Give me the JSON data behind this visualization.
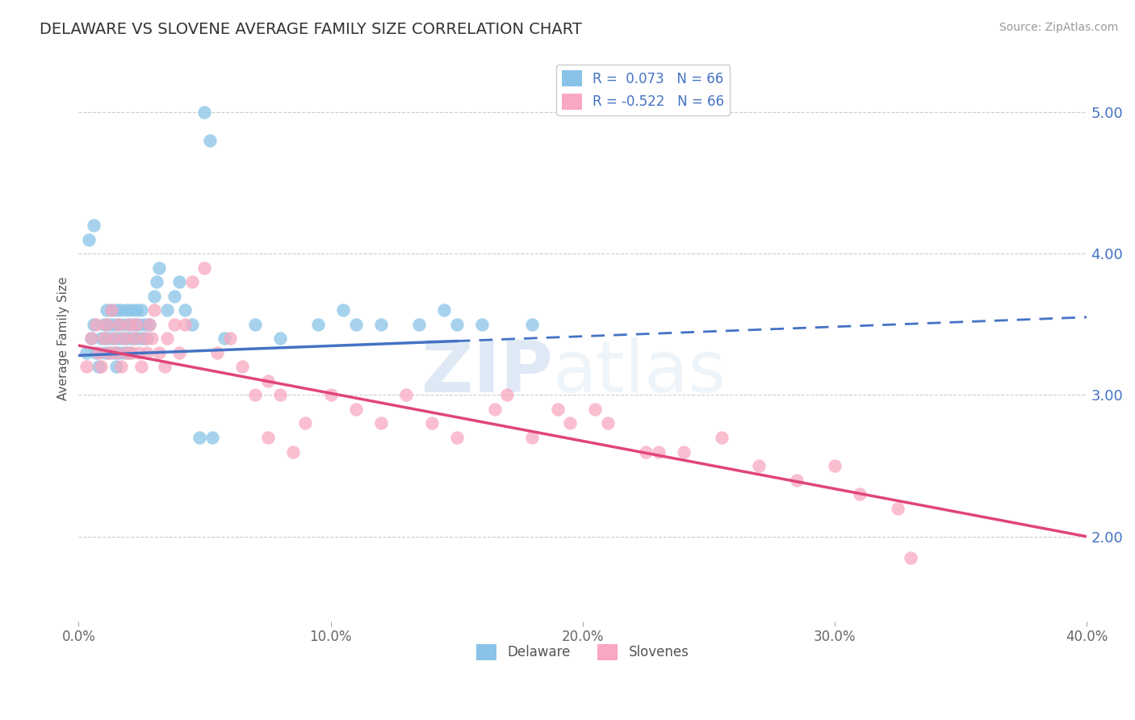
{
  "title": "DELAWARE VS SLOVENE AVERAGE FAMILY SIZE CORRELATION CHART",
  "source": "Source: ZipAtlas.com",
  "ylabel": "Average Family Size",
  "xmin": 0.0,
  "xmax": 40.0,
  "ymin": 1.4,
  "ymax": 5.4,
  "yticks": [
    2.0,
    3.0,
    4.0,
    5.0
  ],
  "xticks": [
    0.0,
    10.0,
    20.0,
    30.0,
    40.0
  ],
  "r_delaware": 0.073,
  "r_slovene": -0.522,
  "n_delaware": 66,
  "n_slovene": 66,
  "color_delaware": "#89c4e8",
  "color_slovene": "#f8a8c0",
  "line_color_delaware": "#4472c4",
  "line_color_slovene": "#e0457a",
  "background_color": "#ffffff",
  "grid_color": "#cccccc",
  "title_color": "#333333",
  "axis_label_color": "#4472c4",
  "watermark_zip": "ZIP",
  "watermark_atlas": "atlas",
  "legend_label_1": "Delaware",
  "legend_label_2": "Slovenes",
  "del_line_x0": 0.0,
  "del_line_y0": 3.28,
  "del_line_x1": 40.0,
  "del_line_y1": 3.55,
  "del_solid_xend": 15.0,
  "slov_line_x0": 0.0,
  "slov_line_y0": 3.35,
  "slov_line_x1": 40.0,
  "slov_line_y1": 2.0,
  "delaware_x": [
    0.3,
    0.5,
    0.6,
    0.7,
    0.8,
    0.9,
    1.0,
    1.0,
    1.1,
    1.1,
    1.2,
    1.2,
    1.3,
    1.3,
    1.4,
    1.4,
    1.5,
    1.5,
    1.5,
    1.6,
    1.6,
    1.7,
    1.7,
    1.8,
    1.8,
    1.9,
    1.9,
    2.0,
    2.0,
    2.1,
    2.1,
    2.2,
    2.3,
    2.3,
    2.4,
    2.5,
    2.5,
    2.6,
    2.7,
    2.8,
    3.0,
    3.1,
    3.2,
    3.5,
    3.8,
    4.0,
    4.2,
    4.5,
    5.0,
    5.2,
    5.8,
    7.0,
    8.0,
    9.5,
    10.5,
    11.0,
    12.0,
    13.5,
    14.5,
    15.0,
    16.0,
    18.0,
    4.8,
    5.3,
    0.4,
    0.6
  ],
  "delaware_y": [
    3.3,
    3.4,
    3.5,
    3.3,
    3.2,
    3.4,
    3.3,
    3.5,
    3.4,
    3.6,
    3.3,
    3.5,
    3.4,
    3.6,
    3.3,
    3.5,
    3.2,
    3.4,
    3.6,
    3.3,
    3.5,
    3.4,
    3.6,
    3.3,
    3.5,
    3.4,
    3.6,
    3.3,
    3.5,
    3.4,
    3.6,
    3.5,
    3.4,
    3.6,
    3.5,
    3.4,
    3.6,
    3.5,
    3.4,
    3.5,
    3.7,
    3.8,
    3.9,
    3.6,
    3.7,
    3.8,
    3.6,
    3.5,
    5.0,
    4.8,
    3.4,
    3.5,
    3.4,
    3.5,
    3.6,
    3.5,
    3.5,
    3.5,
    3.6,
    3.5,
    3.5,
    3.5,
    2.7,
    2.7,
    4.1,
    4.2
  ],
  "slovene_x": [
    0.3,
    0.5,
    0.7,
    0.8,
    0.9,
    1.0,
    1.1,
    1.2,
    1.3,
    1.4,
    1.5,
    1.6,
    1.7,
    1.8,
    1.9,
    2.0,
    2.1,
    2.2,
    2.3,
    2.4,
    2.5,
    2.6,
    2.7,
    2.8,
    2.9,
    3.0,
    3.2,
    3.4,
    3.5,
    3.8,
    4.0,
    4.2,
    4.5,
    5.0,
    5.5,
    6.0,
    6.5,
    7.0,
    7.5,
    8.0,
    9.0,
    10.0,
    11.0,
    12.0,
    13.0,
    14.0,
    15.0,
    16.5,
    18.0,
    19.5,
    21.0,
    22.5,
    24.0,
    25.5,
    27.0,
    28.5,
    30.0,
    31.0,
    17.0,
    19.0,
    20.5,
    23.0,
    33.0,
    7.5,
    8.5,
    32.5
  ],
  "slovene_y": [
    3.2,
    3.4,
    3.5,
    3.3,
    3.2,
    3.4,
    3.5,
    3.3,
    3.6,
    3.4,
    3.3,
    3.5,
    3.2,
    3.4,
    3.3,
    3.5,
    3.3,
    3.4,
    3.5,
    3.3,
    3.2,
    3.4,
    3.3,
    3.5,
    3.4,
    3.6,
    3.3,
    3.2,
    3.4,
    3.5,
    3.3,
    3.5,
    3.8,
    3.9,
    3.3,
    3.4,
    3.2,
    3.0,
    3.1,
    3.0,
    2.8,
    3.0,
    2.9,
    2.8,
    3.0,
    2.8,
    2.7,
    2.9,
    2.7,
    2.8,
    2.8,
    2.6,
    2.6,
    2.7,
    2.5,
    2.4,
    2.5,
    2.3,
    3.0,
    2.9,
    2.9,
    2.6,
    1.85,
    2.7,
    2.6,
    2.2
  ]
}
